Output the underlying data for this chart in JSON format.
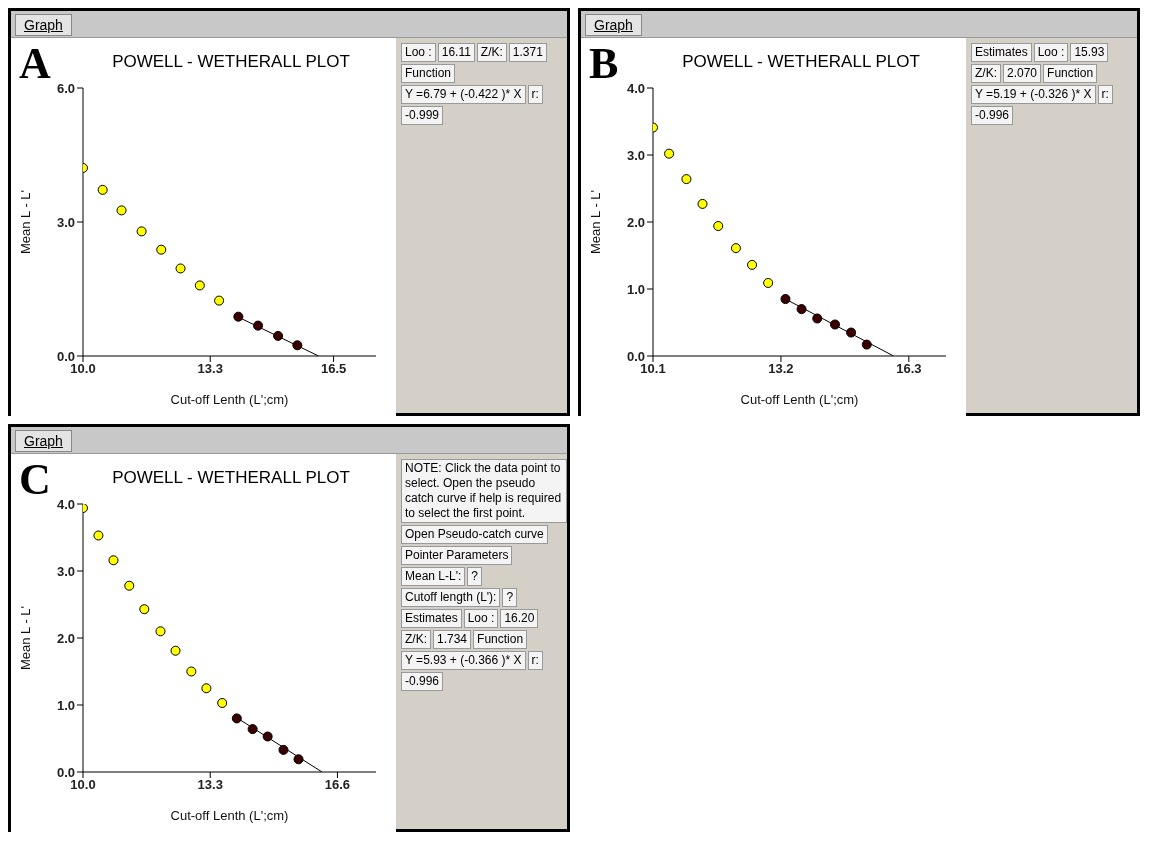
{
  "chart_data": [
    {
      "type": "scatter",
      "title": "POWELL - WETHERALL PLOT",
      "xlabel": "Cut-off Lenth (L';cm)",
      "ylabel": "Mean L - L'",
      "xlim": [
        10.0,
        17.6
      ],
      "xticks": [
        {
          "value": 10,
          "label": "10.0"
        },
        13.3,
        16.5
      ],
      "ylim": [
        0,
        6
      ],
      "yticks": [
        {
          "value": 0,
          "label": "0.0"
        },
        {
          "value": 3,
          "label": "3.0"
        },
        {
          "value": 6,
          "label": "6.0"
        }
      ],
      "series": [
        {
          "color": "#ffff00",
          "marker": "circle",
          "x": [
            10.0,
            10.51,
            11.0,
            11.52,
            12.03,
            12.53,
            13.03,
            13.53
          ],
          "values": [
            4.21,
            3.72,
            3.26,
            2.79,
            2.38,
            1.96,
            1.58,
            1.24
          ]
        },
        {
          "color": "#3a0000",
          "marker": "circle",
          "x": [
            14.03,
            14.54,
            15.06,
            15.56
          ],
          "values": [
            0.88,
            0.68,
            0.45,
            0.24
          ]
        },
        {
          "type": "line",
          "color": "#000000",
          "x": [
            14.03,
            16.11
          ],
          "values": [
            0.87,
            0
          ]
        }
      ],
      "annotations": [
        "A",
        "Graph",
        "Loo :",
        "16.11",
        "Z/K:",
        "1.371",
        "Function",
        "Y =6.79 + (-0.422 )* X",
        "r:",
        "-0.999"
      ]
    },
    {
      "type": "scatter",
      "title": "POWELL - WETHERALL PLOT",
      "xlabel": "Cut-off Lenth (L';cm)",
      "ylabel": "Mean L - L'",
      "xlim": [
        10.1,
        17.2
      ],
      "xticks": [
        10.1,
        13.2,
        16.3
      ],
      "ylim": [
        0,
        4
      ],
      "yticks": [
        {
          "value": 0,
          "label": "0.0"
        },
        {
          "value": 1,
          "label": "1.0"
        },
        {
          "value": 2,
          "label": "2.0"
        },
        {
          "value": 3,
          "label": "3.0"
        },
        {
          "value": 4,
          "label": "4.0"
        }
      ],
      "series": [
        {
          "color": "#ffff00",
          "marker": "circle",
          "x": [
            10.1,
            10.49,
            10.91,
            11.3,
            11.68,
            12.11,
            12.5,
            12.89
          ],
          "values": [
            3.41,
            3.02,
            2.64,
            2.27,
            1.94,
            1.61,
            1.36,
            1.09
          ]
        },
        {
          "color": "#3a0000",
          "marker": "circle",
          "x": [
            13.31,
            13.7,
            14.08,
            14.51,
            14.9,
            15.28
          ],
          "values": [
            0.85,
            0.7,
            0.56,
            0.47,
            0.35,
            0.17
          ]
        },
        {
          "type": "line",
          "color": "#000000",
          "x": [
            13.31,
            15.93
          ],
          "values": [
            0.85,
            0
          ]
        }
      ],
      "annotations": [
        "B",
        "Graph",
        "Estimates",
        "Loo :",
        "15.93",
        "Z/K:",
        "2.070",
        "Function",
        "Y =5.19 + (-0.326 )* X",
        "r:",
        "-0.996"
      ]
    },
    {
      "type": "scatter",
      "title": "POWELL - WETHERALL PLOT",
      "xlabel": "Cut-off Lenth (L';cm)",
      "ylabel": "Mean L - L'",
      "xlim": [
        10.0,
        17.6
      ],
      "xticks": [
        {
          "value": 10,
          "label": "10.0"
        },
        13.3,
        16.6
      ],
      "ylim": [
        0,
        4
      ],
      "yticks": [
        {
          "value": 0,
          "label": "0.0"
        },
        {
          "value": 1,
          "label": "1.0"
        },
        {
          "value": 2,
          "label": "2.0"
        },
        {
          "value": 3,
          "label": "3.0"
        },
        {
          "value": 4,
          "label": "4.0"
        }
      ],
      "series": [
        {
          "color": "#ffff00",
          "marker": "circle",
          "x": [
            10.0,
            10.4,
            10.79,
            11.2,
            11.59,
            12.01,
            12.4,
            12.81,
            13.2,
            13.61
          ],
          "values": [
            3.94,
            3.53,
            3.16,
            2.78,
            2.43,
            2.1,
            1.81,
            1.5,
            1.25,
            1.03
          ]
        },
        {
          "color": "#3a0000",
          "marker": "circle",
          "x": [
            13.99,
            14.4,
            14.79,
            15.2,
            15.59
          ],
          "values": [
            0.8,
            0.64,
            0.53,
            0.33,
            0.19
          ]
        },
        {
          "type": "line",
          "color": "#000000",
          "x": [
            13.99,
            16.2
          ],
          "values": [
            0.81,
            0
          ]
        }
      ],
      "annotations": [
        "C",
        "Graph",
        "NOTE: Click the data point to select. Open the pseudo catch curve if help is required to select the first point.",
        "Open Pseudo-catch curve",
        "Pointer Parameters",
        "Mean L-L':",
        "?",
        "Cutoff length (L'):",
        "?",
        "Estimates",
        "Loo :",
        "16.20",
        "Z/K:",
        "1.734",
        "Function",
        "Y =5.93 + (-0.366 )* X",
        "r:",
        "-0.996"
      ]
    }
  ]
}
